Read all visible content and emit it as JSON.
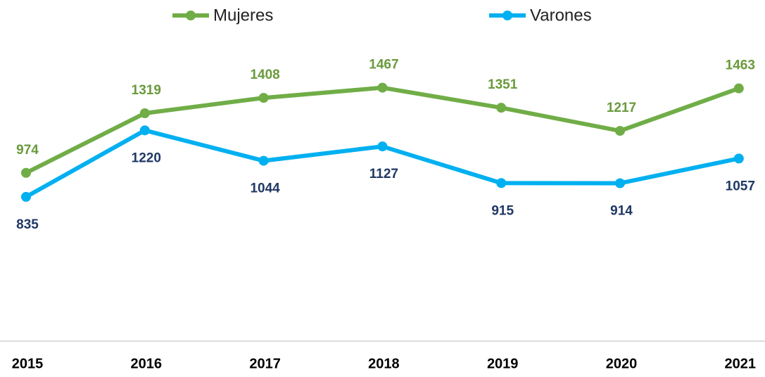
{
  "chart_data": {
    "type": "line",
    "categories": [
      "2015",
      "2016",
      "2017",
      "2018",
      "2019",
      "2020",
      "2021"
    ],
    "series": [
      {
        "name": "Mujeres",
        "color": "#70ad47",
        "values": [
          974,
          1319,
          1408,
          1467,
          1351,
          1217,
          1463
        ]
      },
      {
        "name": "Varones",
        "color": "#00b0f0",
        "values": [
          835,
          1220,
          1044,
          1127,
          915,
          914,
          1057
        ]
      }
    ],
    "ylim": [
      0,
      1600
    ],
    "legend": "top"
  }
}
